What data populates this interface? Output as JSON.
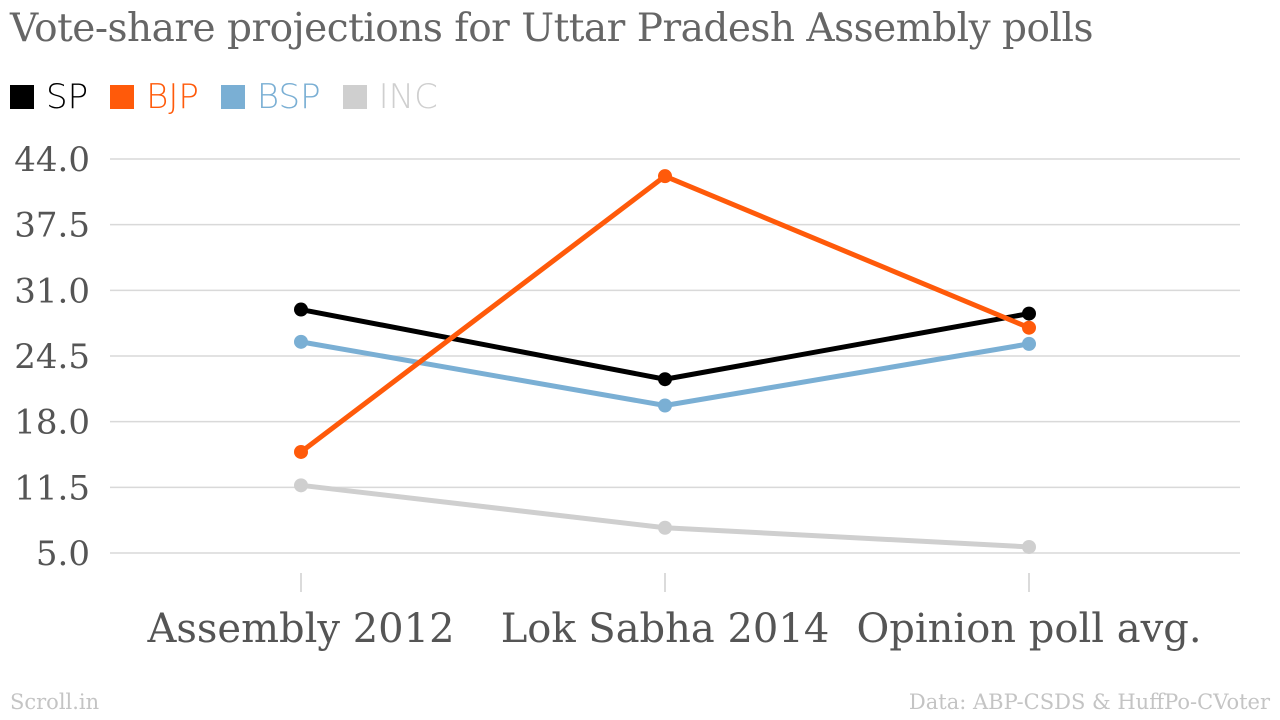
{
  "header": {
    "title": "Vote-share projections for Uttar Pradesh Assembly polls"
  },
  "legend": [
    {
      "label": "SP",
      "color": "#000000",
      "text_color": "#000000"
    },
    {
      "label": "BJP",
      "color": "#ff5a0a",
      "text_color": "#ff5a0a"
    },
    {
      "label": "BSP",
      "color": "#7aafd4",
      "text_color": "#7aafd4"
    },
    {
      "label": "INC",
      "color": "#cfcfcf",
      "text_color": "#cfcfcf"
    }
  ],
  "footer": {
    "source_left": "Scroll.in",
    "source_right": "Data: ABP-CSDS & HuffPo-CVoter"
  },
  "chart_data": {
    "type": "line",
    "title": "Vote-share projections for Uttar Pradesh Assembly polls",
    "xlabel": "",
    "ylabel": "",
    "categories": [
      "Assembly 2012",
      "Lok Sabha 2014",
      "Opinion poll avg."
    ],
    "y_ticks": [
      "5.0",
      "11.5",
      "18.0",
      "24.5",
      "31.0",
      "37.5",
      "44.0"
    ],
    "ylim": [
      5.0,
      44.0
    ],
    "grid": true,
    "legend_position": "top-left",
    "series": [
      {
        "name": "INC",
        "color": "#cfcfcf",
        "values": [
          11.7,
          7.5,
          5.6
        ]
      },
      {
        "name": "BSP",
        "color": "#7aafd4",
        "values": [
          25.9,
          19.6,
          25.7
        ]
      },
      {
        "name": "SP",
        "color": "#000000",
        "values": [
          29.1,
          22.2,
          28.7
        ]
      },
      {
        "name": "BJP",
        "color": "#ff5a0a",
        "values": [
          15.0,
          42.3,
          27.3
        ]
      }
    ]
  }
}
